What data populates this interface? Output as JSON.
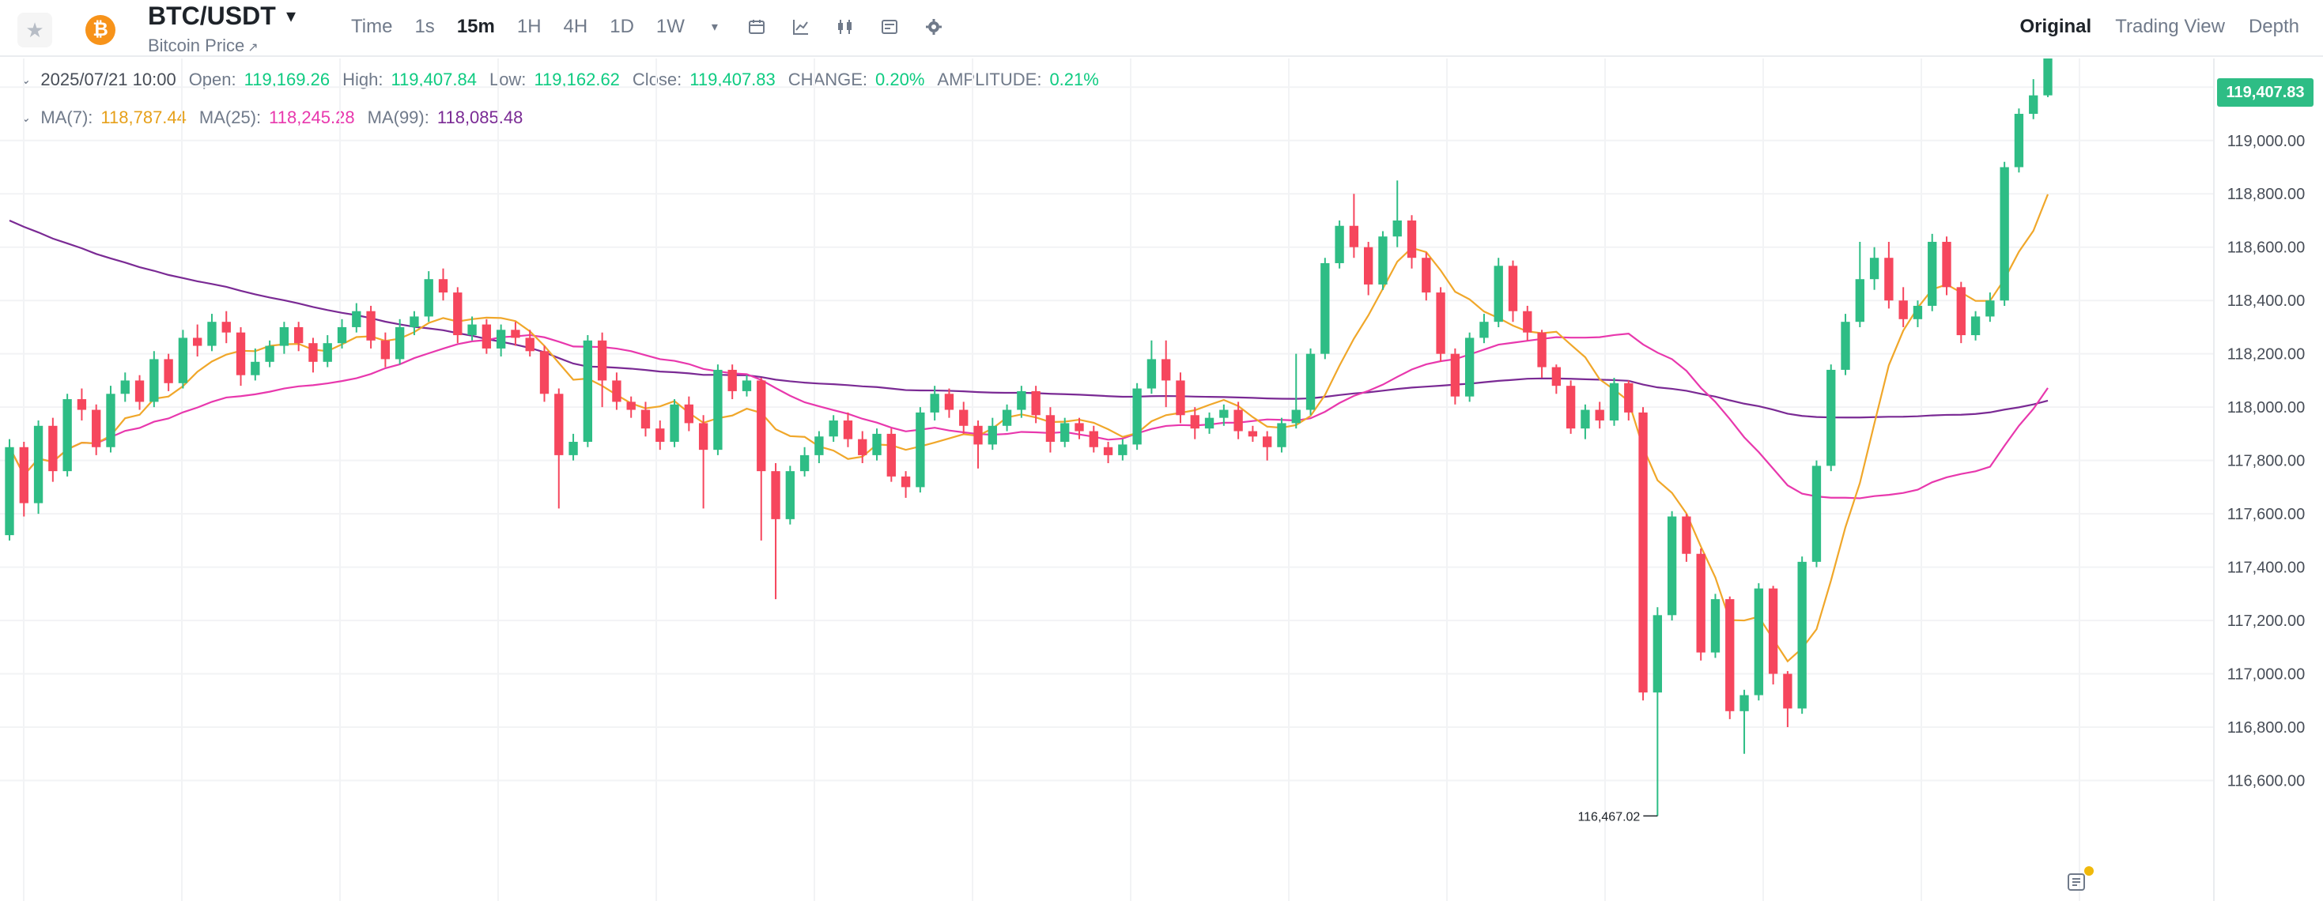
{
  "header": {
    "symbol": "BTC/USDT",
    "subtitle": "Bitcoin Price",
    "logo_glyph": "₿",
    "intervals": [
      {
        "label": "Time",
        "active": false
      },
      {
        "label": "1s",
        "active": false
      },
      {
        "label": "15m",
        "active": true
      },
      {
        "label": "1H",
        "active": false
      },
      {
        "label": "4H",
        "active": false
      },
      {
        "label": "1D",
        "active": false
      },
      {
        "label": "1W",
        "active": false
      }
    ],
    "tools": [
      "calendar-icon",
      "indicator-icon",
      "candle-type-icon",
      "layout-icon",
      "settings-icon"
    ],
    "view_tabs": [
      {
        "label": "Original",
        "active": true
      },
      {
        "label": "Trading View",
        "active": false
      },
      {
        "label": "Depth",
        "active": false
      }
    ]
  },
  "ohlc": {
    "datetime": "2025/07/21 10:00",
    "open_label": "Open:",
    "open": "119,169.26",
    "high_label": "High:",
    "high": "119,407.84",
    "low_label": "Low:",
    "low": "119,162.62",
    "close_label": "Close:",
    "close": "119,407.83",
    "change_label": "CHANGE:",
    "change": "0.20%",
    "amplitude_label": "AMPLITUDE:",
    "amplitude": "0.21%"
  },
  "ma_legend": {
    "ma7_label": "MA(7):",
    "ma7": "118,787.44",
    "ma25_label": "MA(25):",
    "ma25": "118,245.28",
    "ma99_label": "MA(99):",
    "ma99": "118,085.48"
  },
  "chart_data": {
    "type": "candlestick",
    "ylim": [
      116400,
      119550
    ],
    "y_ticks": [
      116600,
      116800,
      117000,
      117200,
      117400,
      117600,
      117800,
      118000,
      118200,
      118400,
      118600,
      118800,
      119000,
      119200
    ],
    "y_tick_labels": [
      "116,600.00",
      "116,800.00",
      "117,000.00",
      "117,200.00",
      "117,400.00",
      "117,600.00",
      "117,800.00",
      "118,000.00",
      "118,200.00",
      "118,400.00",
      "118,600.00",
      "118,800.00",
      "119,000.00",
      "119,200.00"
    ],
    "current_price": 119407.83,
    "current_price_label": "119,407.83",
    "max_marker": {
      "value": 119407.84,
      "label": "119,407.84"
    },
    "min_marker": {
      "value": 116467.02,
      "label": "116,467.02"
    },
    "candles": [
      [
        117520,
        117850,
        117500,
        117880
      ],
      [
        117850,
        117640,
        117590,
        117870
      ],
      [
        117640,
        117930,
        117600,
        117950
      ],
      [
        117930,
        117760,
        117720,
        117960
      ],
      [
        117760,
        118030,
        117740,
        118050
      ],
      [
        118030,
        117990,
        117950,
        118070
      ],
      [
        117990,
        117850,
        117820,
        118010
      ],
      [
        117850,
        118050,
        117830,
        118080
      ],
      [
        118050,
        118100,
        118020,
        118130
      ],
      [
        118100,
        118020,
        117990,
        118120
      ],
      [
        118020,
        118180,
        118000,
        118210
      ],
      [
        118180,
        118090,
        118060,
        118200
      ],
      [
        118090,
        118260,
        118070,
        118290
      ],
      [
        118260,
        118230,
        118190,
        118310
      ],
      [
        118230,
        118320,
        118210,
        118350
      ],
      [
        118320,
        118280,
        118240,
        118360
      ],
      [
        118280,
        118120,
        118080,
        118300
      ],
      [
        118120,
        118170,
        118100,
        118220
      ],
      [
        118170,
        118230,
        118150,
        118250
      ],
      [
        118230,
        118300,
        118200,
        118320
      ],
      [
        118300,
        118240,
        118210,
        118320
      ],
      [
        118240,
        118170,
        118130,
        118260
      ],
      [
        118170,
        118240,
        118150,
        118270
      ],
      [
        118240,
        118300,
        118220,
        118330
      ],
      [
        118300,
        118360,
        118280,
        118390
      ],
      [
        118360,
        118250,
        118220,
        118380
      ],
      [
        118250,
        118180,
        118150,
        118280
      ],
      [
        118180,
        118300,
        118160,
        118330
      ],
      [
        118300,
        118340,
        118270,
        118360
      ],
      [
        118340,
        118480,
        118320,
        118510
      ],
      [
        118480,
        118430,
        118400,
        118520
      ],
      [
        118430,
        118270,
        118240,
        118450
      ],
      [
        118270,
        118310,
        118250,
        118340
      ],
      [
        118310,
        118220,
        118200,
        118330
      ],
      [
        118220,
        118290,
        118190,
        118310
      ],
      [
        118290,
        118260,
        118230,
        118320
      ],
      [
        118260,
        118210,
        118190,
        118290
      ],
      [
        118210,
        118050,
        118020,
        118230
      ],
      [
        118050,
        117820,
        117620,
        118070
      ],
      [
        117820,
        117870,
        117800,
        117900
      ],
      [
        117870,
        118250,
        117850,
        118270
      ],
      [
        118250,
        118100,
        118000,
        118280
      ],
      [
        118100,
        118020,
        117990,
        118130
      ],
      [
        118020,
        117990,
        117960,
        118040
      ],
      [
        117990,
        117920,
        117890,
        118020
      ],
      [
        117920,
        117870,
        117840,
        117950
      ],
      [
        117870,
        118010,
        117850,
        118030
      ],
      [
        118010,
        117940,
        117910,
        118040
      ],
      [
        117940,
        117840,
        117620,
        117970
      ],
      [
        117840,
        118140,
        117820,
        118160
      ],
      [
        118140,
        118060,
        118030,
        118160
      ],
      [
        118060,
        118100,
        118040,
        118120
      ],
      [
        118100,
        117760,
        117500,
        118110
      ],
      [
        117760,
        117580,
        117280,
        117790
      ],
      [
        117580,
        117760,
        117560,
        117780
      ],
      [
        117760,
        117820,
        117740,
        117850
      ],
      [
        117820,
        117890,
        117790,
        117910
      ],
      [
        117890,
        117950,
        117870,
        117970
      ],
      [
        117950,
        117880,
        117850,
        117980
      ],
      [
        117880,
        117820,
        117790,
        117910
      ],
      [
        117820,
        117900,
        117800,
        117920
      ],
      [
        117900,
        117740,
        117720,
        117920
      ],
      [
        117740,
        117700,
        117660,
        117760
      ],
      [
        117700,
        117980,
        117680,
        118000
      ],
      [
        117980,
        118050,
        117950,
        118080
      ],
      [
        118050,
        117990,
        117960,
        118070
      ],
      [
        117990,
        117930,
        117900,
        118020
      ],
      [
        117930,
        117860,
        117770,
        117950
      ],
      [
        117860,
        117930,
        117840,
        117960
      ],
      [
        117930,
        117990,
        117910,
        118010
      ],
      [
        117990,
        118060,
        117960,
        118080
      ],
      [
        118060,
        117970,
        117940,
        118080
      ],
      [
        117970,
        117870,
        117830,
        118000
      ],
      [
        117870,
        117940,
        117850,
        117960
      ],
      [
        117940,
        117910,
        117880,
        117960
      ],
      [
        117910,
        117850,
        117830,
        117930
      ],
      [
        117850,
        117820,
        117790,
        117870
      ],
      [
        117820,
        117860,
        117800,
        117880
      ],
      [
        117860,
        118070,
        117840,
        118090
      ],
      [
        118070,
        118180,
        118050,
        118250
      ],
      [
        118180,
        118100,
        118000,
        118250
      ],
      [
        118100,
        117970,
        117940,
        118130
      ],
      [
        117970,
        117920,
        117880,
        118000
      ],
      [
        117920,
        117960,
        117900,
        117980
      ],
      [
        117960,
        117990,
        117930,
        118010
      ],
      [
        117990,
        117910,
        117880,
        118020
      ],
      [
        117910,
        117890,
        117870,
        117930
      ],
      [
        117890,
        117850,
        117800,
        117910
      ],
      [
        117850,
        117940,
        117830,
        117960
      ],
      [
        117940,
        117990,
        117920,
        118200
      ],
      [
        117990,
        118200,
        117970,
        118220
      ],
      [
        118200,
        118540,
        118180,
        118560
      ],
      [
        118540,
        118680,
        118520,
        118700
      ],
      [
        118680,
        118600,
        118560,
        118800
      ],
      [
        118600,
        118460,
        118420,
        118620
      ],
      [
        118460,
        118640,
        118440,
        118660
      ],
      [
        118640,
        118700,
        118600,
        118850
      ],
      [
        118700,
        118560,
        118520,
        118720
      ],
      [
        118560,
        118430,
        118400,
        118580
      ],
      [
        118430,
        118200,
        118170,
        118450
      ],
      [
        118200,
        118040,
        118010,
        118220
      ],
      [
        118040,
        118260,
        118020,
        118280
      ],
      [
        118260,
        118320,
        118240,
        118350
      ],
      [
        118320,
        118530,
        118300,
        118560
      ],
      [
        118530,
        118360,
        118320,
        118550
      ],
      [
        118360,
        118280,
        118250,
        118380
      ],
      [
        118280,
        118150,
        118110,
        118290
      ],
      [
        118150,
        118080,
        118050,
        118160
      ],
      [
        118080,
        117920,
        117900,
        118100
      ],
      [
        117920,
        117990,
        117880,
        118010
      ],
      [
        117990,
        117950,
        117920,
        118020
      ],
      [
        117950,
        118090,
        117930,
        118110
      ],
      [
        118090,
        117980,
        117950,
        118100
      ],
      [
        117980,
        116930,
        116900,
        118000
      ],
      [
        116930,
        117220,
        116467,
        117250
      ],
      [
        117220,
        117590,
        117200,
        117610
      ],
      [
        117590,
        117450,
        117420,
        117600
      ],
      [
        117450,
        117080,
        117050,
        117470
      ],
      [
        117080,
        117280,
        117060,
        117300
      ],
      [
        117280,
        116860,
        116830,
        117290
      ],
      [
        116860,
        116920,
        116700,
        116940
      ],
      [
        116920,
        117320,
        116900,
        117340
      ],
      [
        117320,
        117000,
        116960,
        117330
      ],
      [
        117000,
        116870,
        116800,
        117010
      ],
      [
        116870,
        117420,
        116850,
        117440
      ],
      [
        117420,
        117780,
        117400,
        117800
      ],
      [
        117780,
        118140,
        117760,
        118160
      ],
      [
        118140,
        118320,
        118120,
        118350
      ],
      [
        118320,
        118480,
        118300,
        118620
      ],
      [
        118480,
        118560,
        118440,
        118600
      ],
      [
        118560,
        118400,
        118370,
        118620
      ],
      [
        118400,
        118330,
        118300,
        118450
      ],
      [
        118330,
        118380,
        118300,
        118400
      ],
      [
        118380,
        118620,
        118360,
        118650
      ],
      [
        118620,
        118450,
        118420,
        118640
      ],
      [
        118450,
        118270,
        118240,
        118470
      ],
      [
        118270,
        118340,
        118250,
        118360
      ],
      [
        118340,
        118400,
        118320,
        118430
      ],
      [
        118400,
        118900,
        118380,
        118920
      ],
      [
        118900,
        119100,
        118880,
        119120
      ],
      [
        119100,
        119169.26,
        119080,
        119230
      ],
      [
        119169.26,
        119407.83,
        119162.62,
        119407.84
      ]
    ]
  }
}
